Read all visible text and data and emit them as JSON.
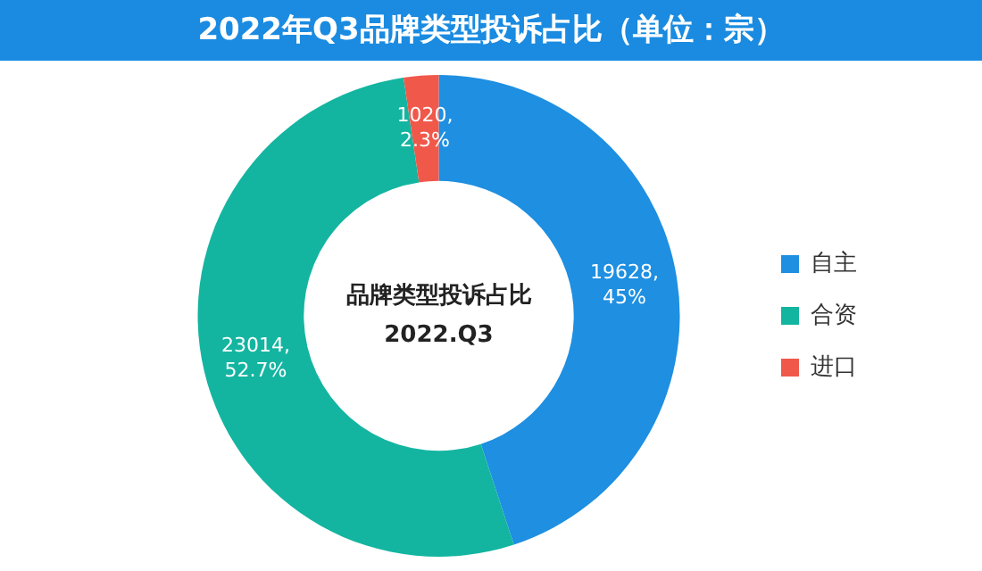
{
  "chart_data": {
    "type": "donut",
    "title": "2022年Q3品牌类型投诉占比（单位：宗）",
    "categories": [
      "自主",
      "合资",
      "进口"
    ],
    "values": [
      19628,
      23014,
      1020
    ],
    "colors": [
      "#1e8fe1",
      "#13b5a0",
      "#f0584a"
    ],
    "value_labels": [
      "19628,\n45%",
      "23014,\n52.7%",
      "1020,\n2.3%"
    ],
    "annotations": [
      "品牌类型投诉占比",
      "2022.Q3"
    ],
    "legend": "right"
  }
}
